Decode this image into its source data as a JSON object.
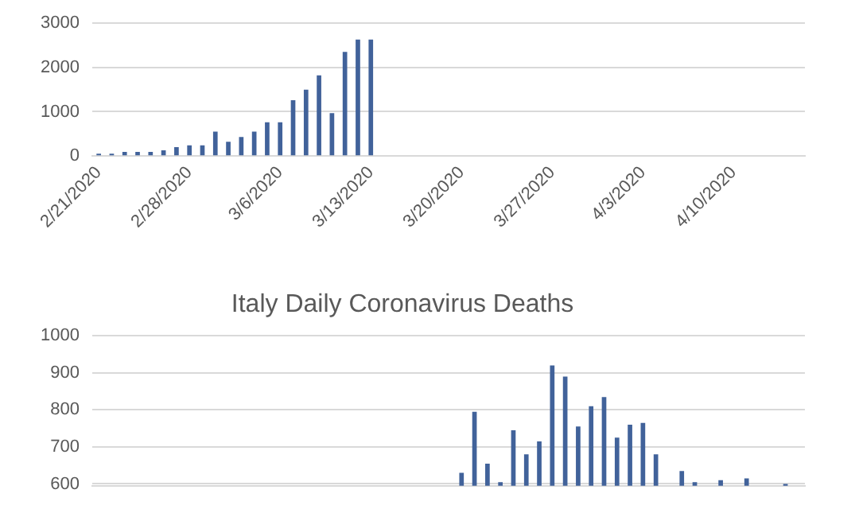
{
  "chart_data": [
    {
      "type": "bar",
      "categories": [
        "2/21/2020",
        null,
        null,
        null,
        null,
        null,
        null,
        "2/28/2020",
        null,
        null,
        null,
        null,
        null,
        null,
        "3/6/2020",
        null,
        null,
        null,
        null,
        null,
        null,
        "3/13/2020",
        null,
        null,
        null,
        null,
        null,
        null,
        "3/20/2020",
        null,
        null,
        null,
        null,
        null,
        null,
        "3/27/2020",
        null,
        null,
        null,
        null,
        null,
        null,
        "4/3/2020",
        null,
        null,
        null,
        null,
        null,
        null,
        "4/10/2020",
        null,
        null,
        null,
        null,
        null
      ],
      "series": [
        {
          "color": "#41629a",
          "values": [
            50,
            50,
            90,
            90,
            90,
            130,
            200,
            240,
            240,
            550,
            320,
            430,
            550,
            760,
            760,
            1260,
            1500,
            1820,
            970,
            2350,
            2630,
            2630,
            null,
            null,
            null,
            null,
            null,
            null,
            null,
            null,
            null,
            null,
            null,
            null,
            null,
            null,
            null,
            null,
            null,
            null,
            null,
            null,
            null,
            null,
            null,
            null,
            null,
            null,
            null,
            null,
            null,
            null,
            null,
            null,
            null
          ]
        }
      ],
      "ylim": [
        0,
        3000
      ],
      "yticks": [
        0,
        1000,
        2000,
        3000
      ],
      "grid": "y",
      "legend": false
    },
    {
      "type": "bar",
      "title": "Italy Daily Coronavirus Deaths",
      "categories": [
        null,
        null,
        null,
        null,
        null,
        null,
        null,
        null,
        null,
        null,
        null,
        null,
        null,
        null,
        null,
        null,
        null,
        null,
        null,
        null,
        null,
        null,
        null,
        null,
        null,
        null,
        null,
        null,
        null,
        null,
        null,
        null,
        null,
        null,
        null,
        null,
        null,
        null,
        null,
        null,
        null,
        null,
        null,
        null,
        null,
        null,
        null,
        null,
        null,
        null,
        null,
        null,
        null,
        null,
        null
      ],
      "series": [
        {
          "color": "#41629a",
          "values": [
            null,
            null,
            null,
            null,
            null,
            null,
            null,
            null,
            null,
            null,
            null,
            null,
            null,
            null,
            null,
            null,
            null,
            null,
            null,
            null,
            null,
            null,
            null,
            null,
            null,
            null,
            null,
            null,
            630,
            795,
            655,
            605,
            745,
            680,
            715,
            920,
            890,
            755,
            810,
            835,
            725,
            760,
            765,
            680,
            null,
            635,
            605,
            null,
            610,
            null,
            615,
            null,
            null,
            600,
            null
          ]
        }
      ],
      "ylim": [
        595,
        1000
      ],
      "yticks": [
        600,
        700,
        800,
        900,
        1000
      ],
      "grid": "y",
      "legend": false,
      "tick_labels": "y"
    }
  ]
}
